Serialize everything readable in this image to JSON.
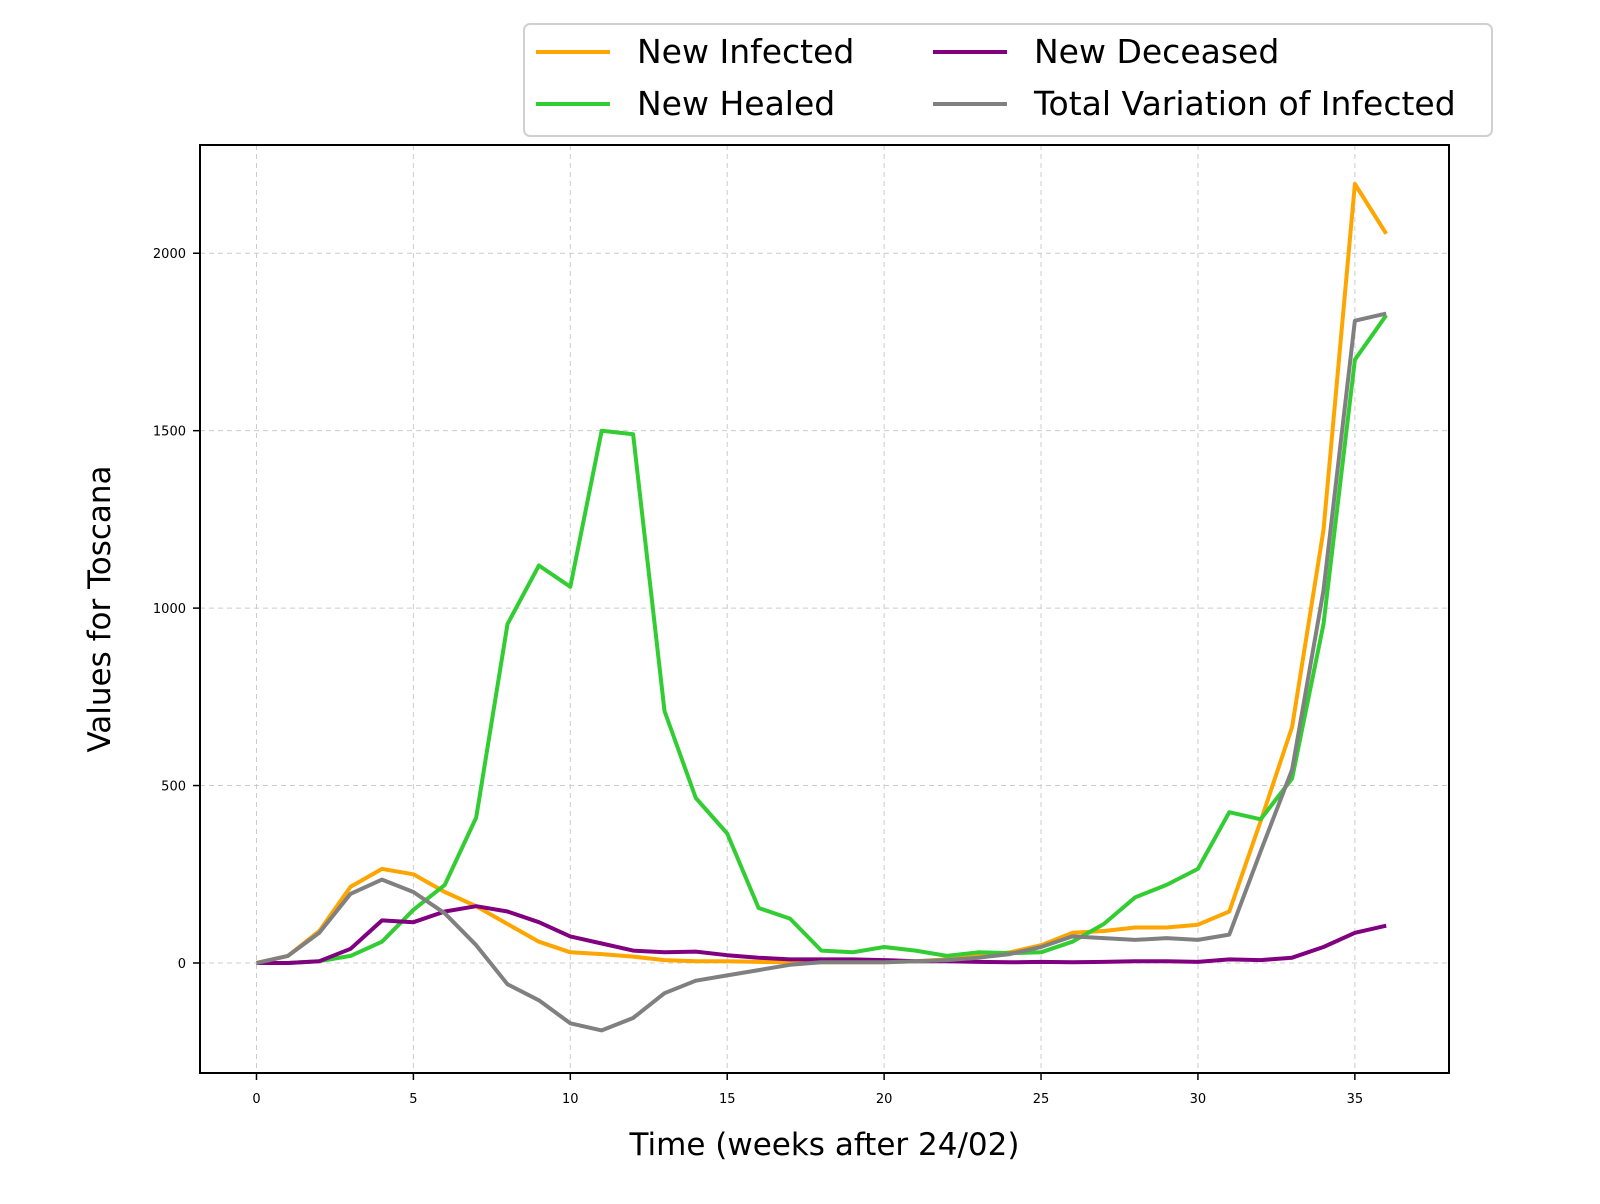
{
  "chart_data": {
    "type": "line",
    "title": "",
    "xlabel": "Time (weeks after 24/02)",
    "ylabel": "Values for Toscana",
    "xlim": [
      -1.8,
      38
    ],
    "ylim": [
      -310,
      2305
    ],
    "xticks": [
      0,
      5,
      10,
      15,
      20,
      25,
      30,
      35
    ],
    "yticks": [
      0,
      500,
      1000,
      1500,
      2000
    ],
    "grid": true,
    "legend_position": "top-right, above plot",
    "x": [
      0,
      1,
      2,
      3,
      4,
      5,
      6,
      7,
      8,
      9,
      10,
      11,
      12,
      13,
      14,
      15,
      16,
      17,
      18,
      19,
      20,
      21,
      22,
      23,
      24,
      25,
      26,
      27,
      28,
      29,
      30,
      31,
      32,
      33,
      34,
      35,
      36
    ],
    "series": [
      {
        "name": "New Infected",
        "color": "#FFA500",
        "values": [
          0,
          20,
          90,
          215,
          265,
          250,
          200,
          160,
          110,
          60,
          30,
          25,
          18,
          8,
          5,
          5,
          3,
          2,
          2,
          2,
          2,
          5,
          10,
          20,
          30,
          50,
          85,
          90,
          100,
          100,
          108,
          145,
          400,
          665,
          1220,
          2195,
          2055
        ]
      },
      {
        "name": "New Healed",
        "color": "#32CD32",
        "values": [
          0,
          0,
          5,
          20,
          60,
          150,
          220,
          410,
          955,
          1120,
          1060,
          1500,
          1490,
          710,
          465,
          365,
          155,
          125,
          35,
          30,
          45,
          35,
          20,
          30,
          28,
          30,
          60,
          110,
          185,
          220,
          265,
          425,
          405,
          520,
          955,
          1700,
          1825
        ]
      },
      {
        "name": "New Deceased",
        "color": "#800080",
        "values": [
          0,
          0,
          5,
          40,
          120,
          115,
          145,
          160,
          145,
          115,
          75,
          55,
          35,
          30,
          32,
          22,
          15,
          10,
          10,
          10,
          8,
          5,
          5,
          3,
          2,
          3,
          2,
          3,
          5,
          5,
          3,
          10,
          8,
          15,
          45,
          85,
          105
        ]
      },
      {
        "name": "Total Variation of Infected",
        "color": "#808080",
        "values": [
          0,
          20,
          85,
          195,
          235,
          200,
          140,
          50,
          -60,
          -105,
          -170,
          -190,
          -155,
          -85,
          -50,
          -35,
          -20,
          -5,
          2,
          2,
          2,
          5,
          8,
          15,
          25,
          45,
          75,
          70,
          65,
          70,
          65,
          80,
          315,
          545,
          1050,
          1810,
          1830
        ]
      }
    ]
  }
}
